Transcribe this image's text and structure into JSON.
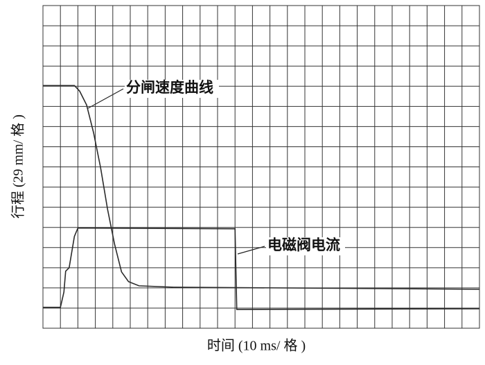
{
  "chart_data": {
    "type": "line",
    "xlabel": "时间 (10 ms/ 格 )",
    "ylabel": "行程 (29 mm/ 格 )",
    "xlim": [
      0,
      250
    ],
    "ylim": [
      0,
      464
    ],
    "xticks": [
      0,
      10,
      20,
      30,
      40,
      50,
      60,
      70,
      80,
      90,
      100,
      110,
      120,
      130,
      140,
      150,
      160,
      170,
      180,
      190,
      200,
      210,
      220,
      230,
      240,
      250
    ],
    "yticks": [
      0,
      29,
      58,
      87,
      116,
      145,
      174,
      203,
      232,
      261,
      290,
      319,
      348,
      377,
      406,
      435,
      464
    ],
    "grid": true,
    "series": [
      {
        "name": "分闸速度曲线",
        "color": "#2a2a2a",
        "x": [
          0,
          18,
          21,
          25,
          29,
          33,
          37,
          41,
          45,
          49,
          55,
          75,
          250
        ],
        "values": [
          349,
          349,
          341,
          321,
          281,
          231,
          171,
          121,
          81,
          67,
          61,
          59,
          56
        ]
      },
      {
        "name": "电磁阀电流",
        "color": "#2a2a2a",
        "x": [
          0,
          10,
          12,
          13,
          15,
          16,
          18,
          20,
          110,
          111,
          250
        ],
        "values": [
          30,
          30,
          52,
          82,
          87,
          102,
          132,
          144,
          143,
          27,
          28
        ]
      }
    ]
  }
}
